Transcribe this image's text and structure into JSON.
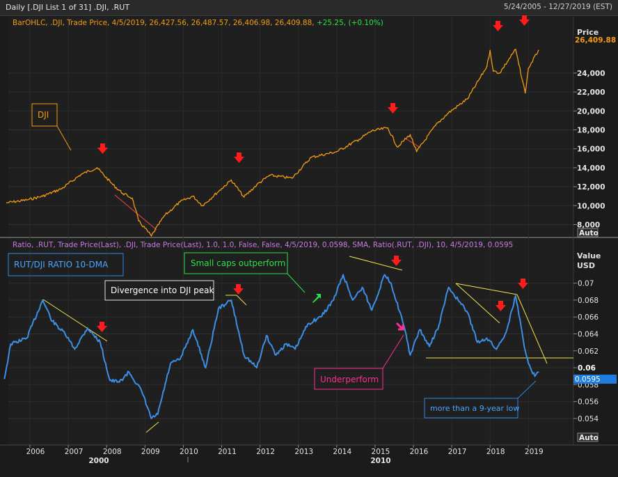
{
  "window": {
    "title": "Daily [.DJI List 1 of 31] .DJI, .RUT",
    "date_range": "5/24/2005 - 12/27/2019 (EST)"
  },
  "colors": {
    "background": "#1b1b1b",
    "dji_line": "#f39c12",
    "ratio_line": "#3d8fe6",
    "trend_line": "#f2e64a",
    "red_trend": "#d23c3c",
    "arrow_red": "#ff1c1c",
    "arrow_green": "#2ee04a",
    "arrow_pink": "#ff2e92",
    "legend_orange": "#f39c12",
    "legend_green": "#2ee04a",
    "legend_purple": "#c97ae0",
    "legend_blue": "#49a5ff"
  },
  "top_panel": {
    "legend_main": "BarOHLC, .DJI, Trade Price, 4/5/2019, 26,427.56, 26,487.57, 26,406.98, 26,409.88,",
    "legend_change": "+25.25, (+0.10%)",
    "axis_title": "Price",
    "current_value_label": "26,409.88",
    "y_tick_labels": [
      "24,000",
      "22,000",
      "20,000",
      "18,000",
      "16,000",
      "14,000",
      "12,000",
      "10,000",
      "8,000"
    ],
    "auto_label": "Auto",
    "annotation_dji": "DJI"
  },
  "bottom_panel": {
    "legend_main": "Ratio, .RUT, Trade Price(Last), .DJI, Trade Price(Last), 1.0, 1.0, False, False, 4/5/2019, 0.0598, SMA, Ratio(.RUT, .DJI), 10, 4/5/2019, 0.0595",
    "axis_title_1": "Value",
    "axis_title_2": "USD",
    "current_value_label": "0.0595",
    "y_tick_labels": [
      "0.07",
      "0.068",
      "0.066",
      "0.064",
      "0.062",
      "0.06",
      "0.058",
      "0.056",
      "0.054"
    ],
    "auto_label": "Auto",
    "annotation_ratio_title": "RUT/DJI RATIO 10-DMA",
    "annotation_divergence": "Divergence into DJI peak",
    "annotation_outperform": "Small caps outperform",
    "annotation_underperform": "Underperform",
    "annotation_low": "more than a 9-year low"
  },
  "x_axis": {
    "year_labels": [
      "2006",
      "2007",
      "2008",
      "2009",
      "2010",
      "2011",
      "2012",
      "2013",
      "2014",
      "2015",
      "2016",
      "2017",
      "2018",
      "2019"
    ],
    "decade_labels": [
      "2000",
      "2010"
    ]
  },
  "chart_data": [
    {
      "type": "line",
      "title": ".DJI",
      "ylabel": "Price",
      "ylim": [
        7200,
        28000
      ],
      "last_value": 26409.88,
      "x": [
        "2005-05-24",
        "2005-12",
        "2006-05",
        "2006-11",
        "2007-05",
        "2007-10",
        "2008-03",
        "2008-06",
        "2008-09",
        "2008-11",
        "2009-03",
        "2009-07",
        "2009-12",
        "2010-04",
        "2010-07",
        "2011-01",
        "2011-04",
        "2011-08",
        "2011-12",
        "2012-04",
        "2012-11",
        "2013-05",
        "2014-01",
        "2014-08",
        "2014-12",
        "2015-05",
        "2015-08",
        "2015-12",
        "2016-02",
        "2016-08",
        "2016-12",
        "2017-06",
        "2017-12",
        "2018-01",
        "2018-02",
        "2018-04",
        "2018-09",
        "2018-10",
        "2018-12",
        "2019-01",
        "2019-04-05"
      ],
      "values": [
        10300,
        10600,
        11000,
        11800,
        13300,
        14000,
        12200,
        11300,
        10800,
        8400,
        6800,
        8900,
        10400,
        11000,
        10000,
        11800,
        12700,
        10900,
        12200,
        13200,
        12900,
        15100,
        15700,
        17000,
        17900,
        18200,
        16200,
        17500,
        15700,
        18500,
        19800,
        21300,
        24700,
        26400,
        24200,
        24000,
        26500,
        24900,
        21900,
        24500,
        26400
      ]
    },
    {
      "type": "line",
      "title": "Ratio(.RUT, .DJI) SMA 10",
      "ylabel": "Value USD",
      "ylim": [
        0.0523,
        0.0747
      ],
      "last_value": 0.0595,
      "x": [
        "2005-05",
        "2005-07",
        "2005-12",
        "2006-05",
        "2006-08",
        "2006-12",
        "2007-03",
        "2007-07",
        "2007-11",
        "2008-02",
        "2008-05",
        "2008-08",
        "2008-12",
        "2009-03",
        "2009-05",
        "2009-09",
        "2009-12",
        "2010-04",
        "2010-08",
        "2010-12",
        "2011-04",
        "2011-08",
        "2011-12",
        "2012-03",
        "2012-06",
        "2012-09",
        "2012-12",
        "2013-04",
        "2013-08",
        "2013-12",
        "2014-03",
        "2014-06",
        "2014-09",
        "2014-12",
        "2015-04",
        "2015-06",
        "2015-10",
        "2015-12",
        "2016-03",
        "2016-06",
        "2016-09",
        "2016-12",
        "2017-03",
        "2017-06",
        "2017-09",
        "2017-12",
        "2018-03",
        "2018-06",
        "2018-09",
        "2018-12",
        "2019-01",
        "2019-03",
        "2019-04-05"
      ],
      "values": [
        0.0587,
        0.0628,
        0.0635,
        0.068,
        0.0655,
        0.064,
        0.0622,
        0.0647,
        0.063,
        0.0585,
        0.0583,
        0.0595,
        0.0572,
        0.054,
        0.0545,
        0.0605,
        0.061,
        0.0645,
        0.06,
        0.067,
        0.068,
        0.0615,
        0.06,
        0.0638,
        0.0615,
        0.0628,
        0.0622,
        0.0652,
        0.066,
        0.068,
        0.071,
        0.068,
        0.0695,
        0.0668,
        0.071,
        0.07,
        0.065,
        0.0615,
        0.0645,
        0.0625,
        0.065,
        0.0695,
        0.068,
        0.0665,
        0.063,
        0.0635,
        0.0622,
        0.0642,
        0.0685,
        0.062,
        0.0605,
        0.059,
        0.0595
      ]
    }
  ]
}
